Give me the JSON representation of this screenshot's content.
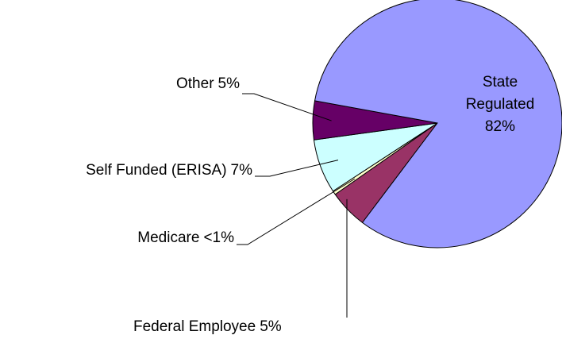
{
  "chart_data": {
    "type": "pie",
    "categories": [
      "Federal Employee",
      "Medicare",
      "Self Funded (ERISA)",
      "Other",
      "State Regulated"
    ],
    "values": [
      5,
      0.5,
      7,
      5,
      82
    ],
    "value_labels": [
      "5%",
      "<1%",
      "7%",
      "5%",
      "82%"
    ],
    "colors": [
      "#993366",
      "#ffffcc",
      "#ccffff",
      "#660066",
      "#9999ff"
    ]
  }
}
